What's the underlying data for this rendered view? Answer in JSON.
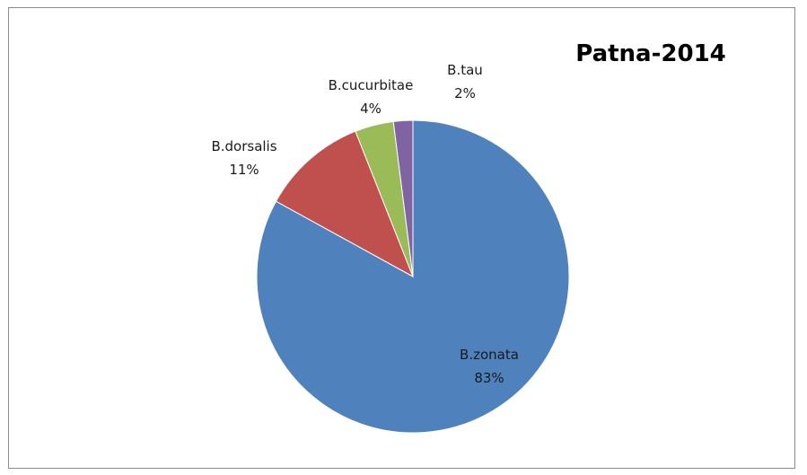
{
  "chart_data": {
    "type": "pie",
    "title": "Patna-2014",
    "legend": "none",
    "slices": [
      {
        "name": "B.zonata",
        "value": 83,
        "label": "83%",
        "color": "#4F81BD"
      },
      {
        "name": "B.dorsalis",
        "value": 11,
        "label": "11%",
        "color": "#C0504D"
      },
      {
        "name": "B.cucurbitae",
        "value": 4,
        "label": "4%",
        "color": "#9BBB59"
      },
      {
        "name": "B.tau",
        "value": 2,
        "label": "2%",
        "color": "#8064A2"
      }
    ]
  }
}
